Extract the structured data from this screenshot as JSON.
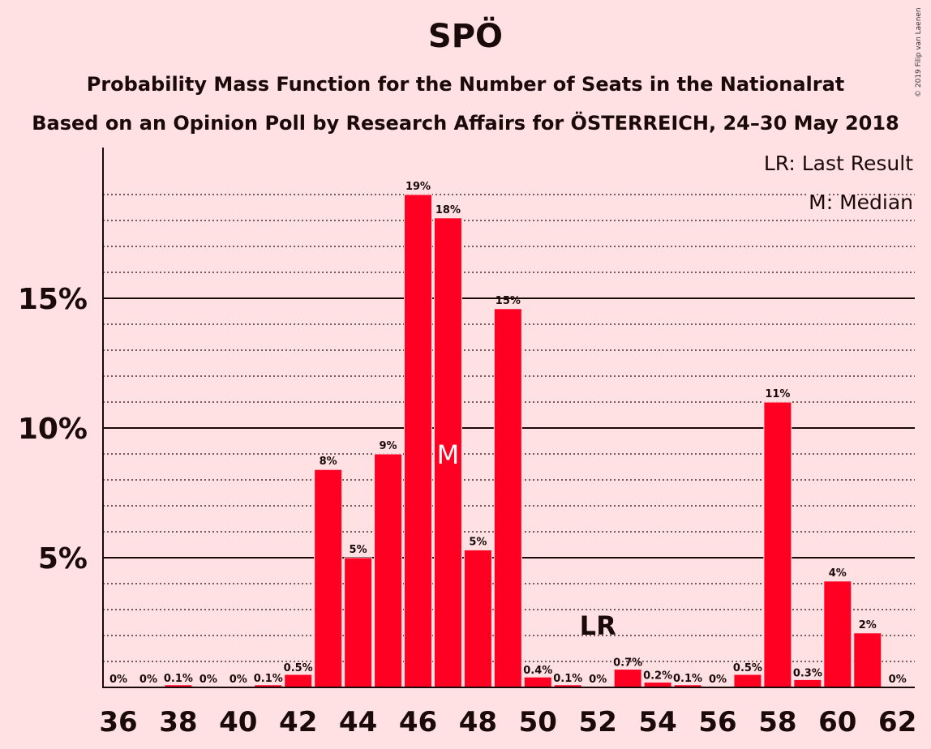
{
  "title": "SPÖ",
  "subtitle": "Probability Mass Function for the Number of Seats in the Nationalrat",
  "subtitle2": "Based on an Opinion Poll by Research Affairs for ÖSTERREICH, 24–30 May 2018",
  "copyright": "© 2019 Filip van Laenen",
  "colors": {
    "bar": "#ff0022",
    "background": "#ffe0e3",
    "text": "#1a0a0a"
  },
  "chart_data": {
    "type": "bar",
    "x": [
      36,
      37,
      38,
      39,
      40,
      41,
      42,
      43,
      44,
      45,
      46,
      47,
      48,
      49,
      50,
      51,
      52,
      53,
      54,
      55,
      56,
      57,
      58,
      59,
      60,
      61,
      62
    ],
    "values": [
      0,
      0,
      0.1,
      0,
      0,
      0.1,
      0.5,
      8.4,
      5.0,
      9.0,
      19.0,
      18.1,
      5.3,
      14.6,
      0.4,
      0.1,
      0,
      0.7,
      0.2,
      0.1,
      0,
      0.5,
      11.0,
      0.3,
      4.1,
      2.1,
      0
    ],
    "labels": [
      "0%",
      "0%",
      "0.1%",
      "0%",
      "0%",
      "0.1%",
      "0.5%",
      "8%",
      "5%",
      "9%",
      "19%",
      "18%",
      "5%",
      "15%",
      "0.4%",
      "0.1%",
      "0%",
      "0.7%",
      "0.2%",
      "0.1%",
      "0%",
      "0.5%",
      "11%",
      "0.3%",
      "4%",
      "2%",
      "0%"
    ],
    "x_ticks": [
      36,
      38,
      40,
      42,
      44,
      46,
      48,
      50,
      52,
      54,
      56,
      58,
      60,
      62
    ],
    "y_ticks": [
      5,
      10,
      15
    ],
    "y_tick_labels": [
      "5%",
      "10%",
      "15%"
    ],
    "ylim": [
      0,
      20.8
    ],
    "minor_gridlines": [
      1,
      2,
      3,
      4,
      6,
      7,
      8,
      9,
      11,
      12,
      13,
      14,
      16,
      17,
      18,
      19
    ],
    "median": {
      "seat": 47,
      "label": "M"
    },
    "last_result": {
      "seat": 52,
      "label": "LR"
    },
    "legend": [
      "LR: Last Result",
      "M: Median"
    ],
    "legend_position": "top-right"
  }
}
